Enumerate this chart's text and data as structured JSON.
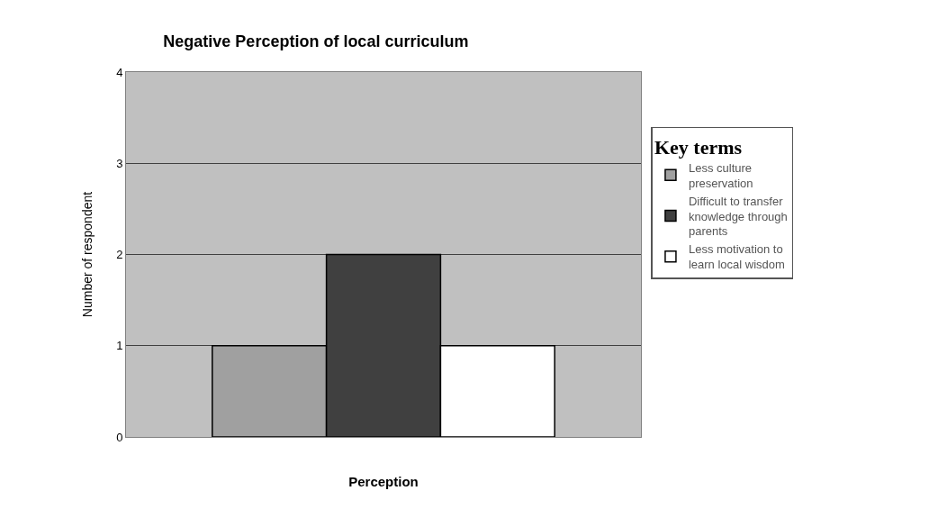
{
  "chart_data": {
    "type": "bar",
    "title": "Negative Perception of local curriculum",
    "xlabel": "Perception",
    "ylabel": "Number of respondent",
    "legend_title": "Key terms",
    "categories": [
      null
    ],
    "series": [
      {
        "name": "Less culture preservation",
        "color": "#a0a0a0",
        "values": [
          1
        ]
      },
      {
        "name": "Difficult to transfer knowledge through parents",
        "color": "#404040",
        "values": [
          2
        ]
      },
      {
        "name": "Less motivation to learn local wisdom",
        "color": "#ffffff",
        "values": [
          1
        ]
      }
    ],
    "ylim": [
      0,
      4
    ],
    "yticks": [
      0,
      1,
      2,
      3,
      4
    ],
    "grid": "y",
    "legend": "right"
  }
}
